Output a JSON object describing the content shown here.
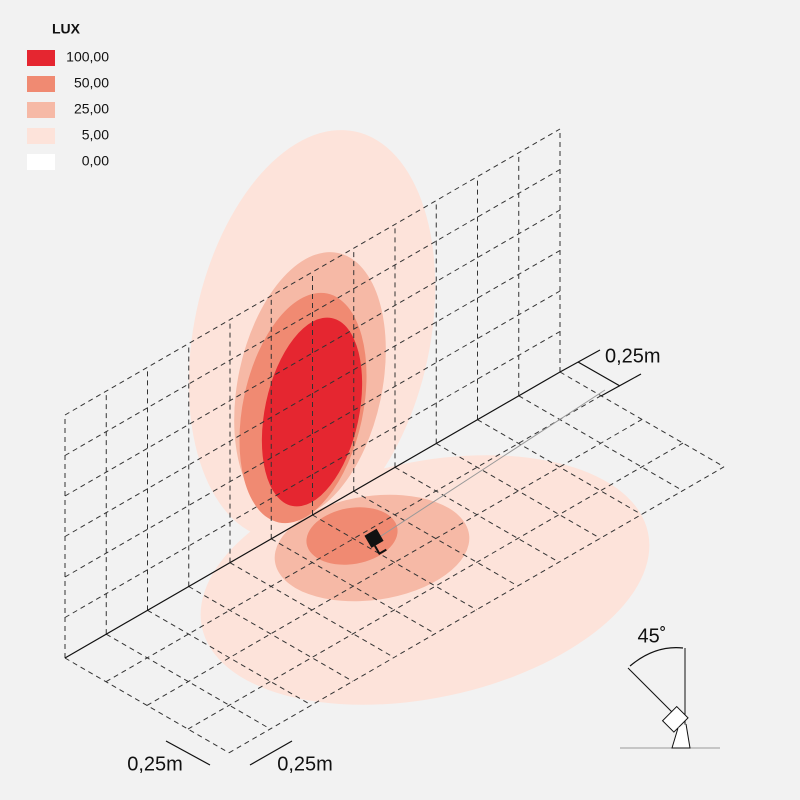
{
  "legend": {
    "title": "LUX",
    "items": [
      {
        "label": "100,00",
        "color": "#e52630"
      },
      {
        "label": "50,00",
        "color": "#f08a72"
      },
      {
        "label": "25,00",
        "color": "#f6b9a6"
      },
      {
        "label": "5,00",
        "color": "#fde3da"
      },
      {
        "label": "0,00",
        "color": "#ffffff"
      }
    ]
  },
  "dimensions": {
    "wall": "0,25m",
    "floor_depth": "0,25m",
    "floor_width": "0,25m"
  },
  "angle": "45˚"
}
